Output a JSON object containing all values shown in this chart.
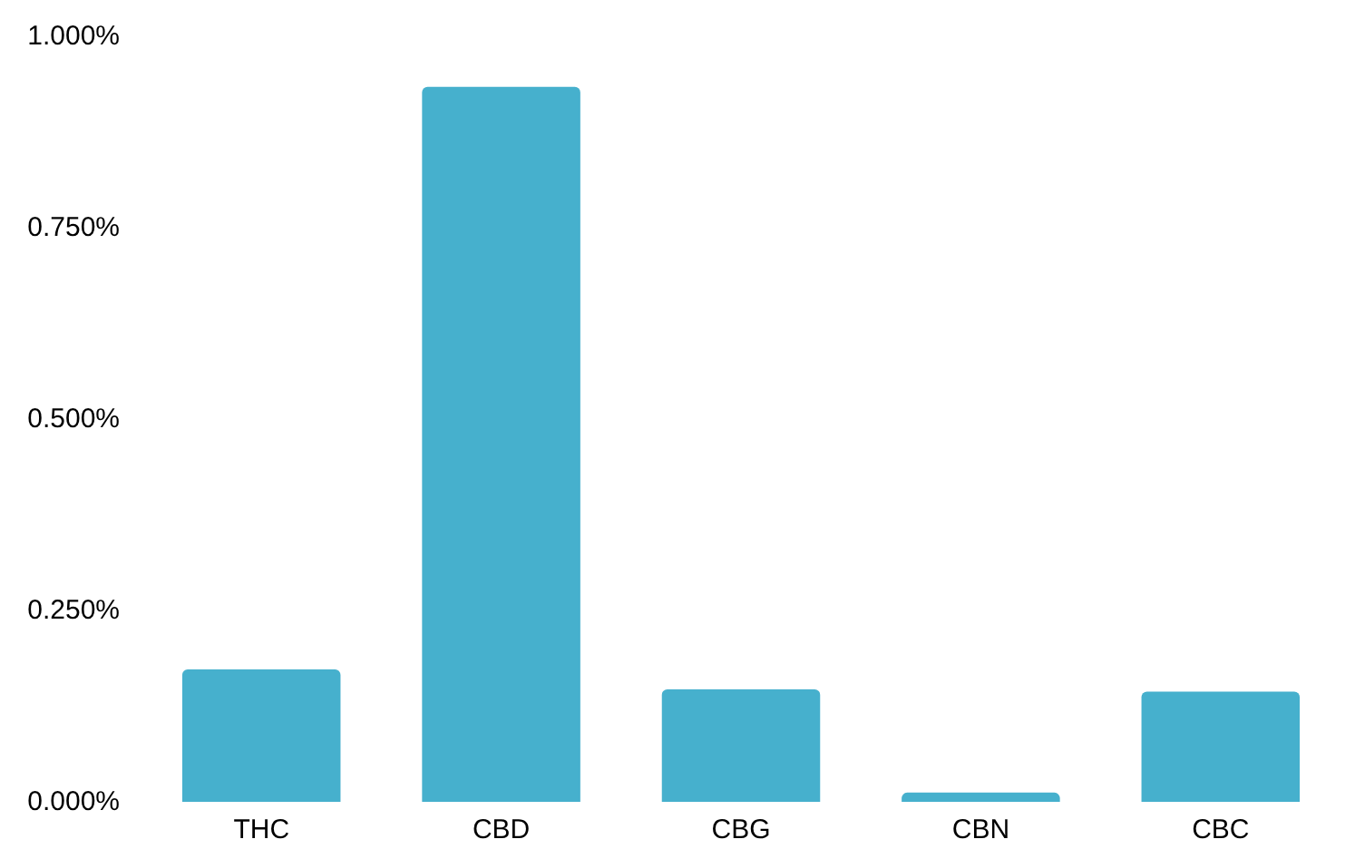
{
  "chart_data": {
    "type": "bar",
    "categories": [
      "THC",
      "CBD",
      "CBG",
      "CBN",
      "CBC"
    ],
    "values": [
      0.173,
      0.934,
      0.147,
      0.012,
      0.144
    ],
    "color": "#46b0cd",
    "ylim": [
      0,
      1
    ],
    "yticks": [
      {
        "value": 0,
        "label": "0.000%"
      },
      {
        "value": 0.25,
        "label": "0.250%"
      },
      {
        "value": 0.5,
        "label": "0.500%"
      },
      {
        "value": 0.75,
        "label": "0.750%"
      },
      {
        "value": 1,
        "label": "1.000%"
      }
    ],
    "grid": false
  }
}
